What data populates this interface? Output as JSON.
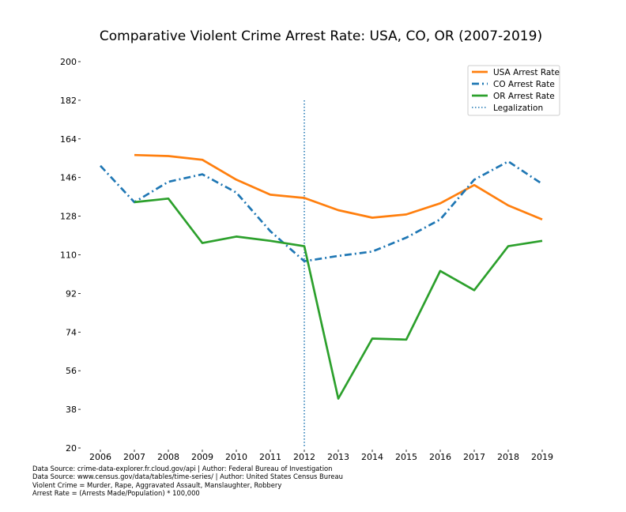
{
  "chart_data": {
    "type": "line",
    "title": "Comparative Violent Crime Arrest Rate: USA, CO, OR (2007-2019)",
    "xlabel": "",
    "ylabel": "",
    "xlim": [
      2006,
      2019
    ],
    "ylim": [
      20,
      200
    ],
    "x_ticks": [
      2006,
      2007,
      2008,
      2009,
      2010,
      2011,
      2012,
      2013,
      2014,
      2015,
      2016,
      2017,
      2018,
      2019
    ],
    "y_ticks": [
      20,
      38,
      56,
      74,
      92,
      110,
      128,
      146,
      164,
      182,
      200
    ],
    "grid": false,
    "legend_position": "top-right",
    "series": [
      {
        "name": "USA Arrest Rate",
        "color": "#ff7f0e",
        "style": "solid",
        "x": [
          2007,
          2008,
          2009,
          2010,
          2011,
          2012,
          2013,
          2014,
          2015,
          2016,
          2017,
          2018,
          2019
        ],
        "values": [
          156.5,
          156.0,
          154.3,
          145.0,
          138.0,
          136.5,
          130.8,
          127.3,
          128.8,
          134.0,
          142.5,
          133.0,
          126.5
        ]
      },
      {
        "name": "CO Arrest Rate",
        "color": "#1f77b4",
        "style": "dashdot",
        "x": [
          2006,
          2007,
          2008,
          2009,
          2010,
          2011,
          2012,
          2013,
          2014,
          2015,
          2016,
          2017,
          2018,
          2019
        ],
        "values": [
          151.5,
          134.5,
          144.0,
          147.5,
          139.0,
          121.0,
          107.0,
          109.5,
          111.5,
          118.0,
          126.5,
          145.0,
          153.5,
          143.0
        ]
      },
      {
        "name": "OR Arrest Rate",
        "color": "#2ca02c",
        "style": "solid",
        "x": [
          2007,
          2008,
          2009,
          2010,
          2011,
          2012,
          2013,
          2014,
          2015,
          2016,
          2017,
          2018,
          2019
        ],
        "values": [
          134.5,
          136.2,
          115.5,
          118.5,
          116.5,
          114.0,
          43.0,
          71.0,
          70.5,
          102.5,
          93.5,
          114.0,
          116.5
        ]
      }
    ],
    "annotations": [
      {
        "name": "Legalization",
        "type": "vline",
        "x": 2012,
        "color": "#1f77b4",
        "style": "dotted"
      }
    ],
    "footer_lines": [
      "Data Source: crime-data-explorer.fr.cloud.gov/api | Author: Federal Bureau of Investigation",
      "Data Source: www.census.gov/data/tables/time-series/ | Author: United States Census Bureau",
      "Violent Crime = Murder, Rape, Aggravated Assault, Manslaughter, Robbery",
      "Arrest Rate = (Arrests Made/Population) * 100,000"
    ]
  }
}
